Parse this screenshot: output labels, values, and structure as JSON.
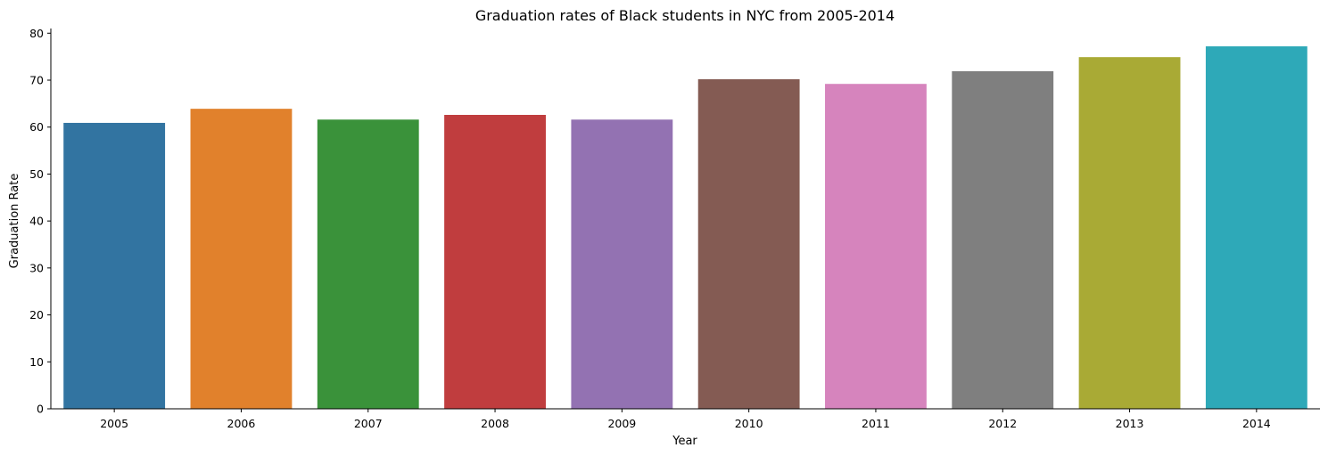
{
  "chart_data": {
    "type": "bar",
    "title": "Graduation rates of Black students in NYC from 2005-2014",
    "xlabel": "Year",
    "ylabel": "Graduation Rate",
    "categories": [
      "2005",
      "2006",
      "2007",
      "2008",
      "2009",
      "2010",
      "2011",
      "2012",
      "2013",
      "2014"
    ],
    "values": [
      60.9,
      63.9,
      61.6,
      62.6,
      61.6,
      70.2,
      69.2,
      71.9,
      74.9,
      77.2
    ],
    "colors": [
      "#3274a1",
      "#e1812c",
      "#3a923a",
      "#c03d3e",
      "#9372b2",
      "#845b53",
      "#d684bd",
      "#7f7f7f",
      "#a9aa35",
      "#2ea9b8"
    ],
    "ylim": [
      0,
      81
    ],
    "yticks": [
      0,
      10,
      20,
      30,
      40,
      50,
      60,
      70,
      80
    ],
    "grid": false,
    "legend": "none"
  }
}
